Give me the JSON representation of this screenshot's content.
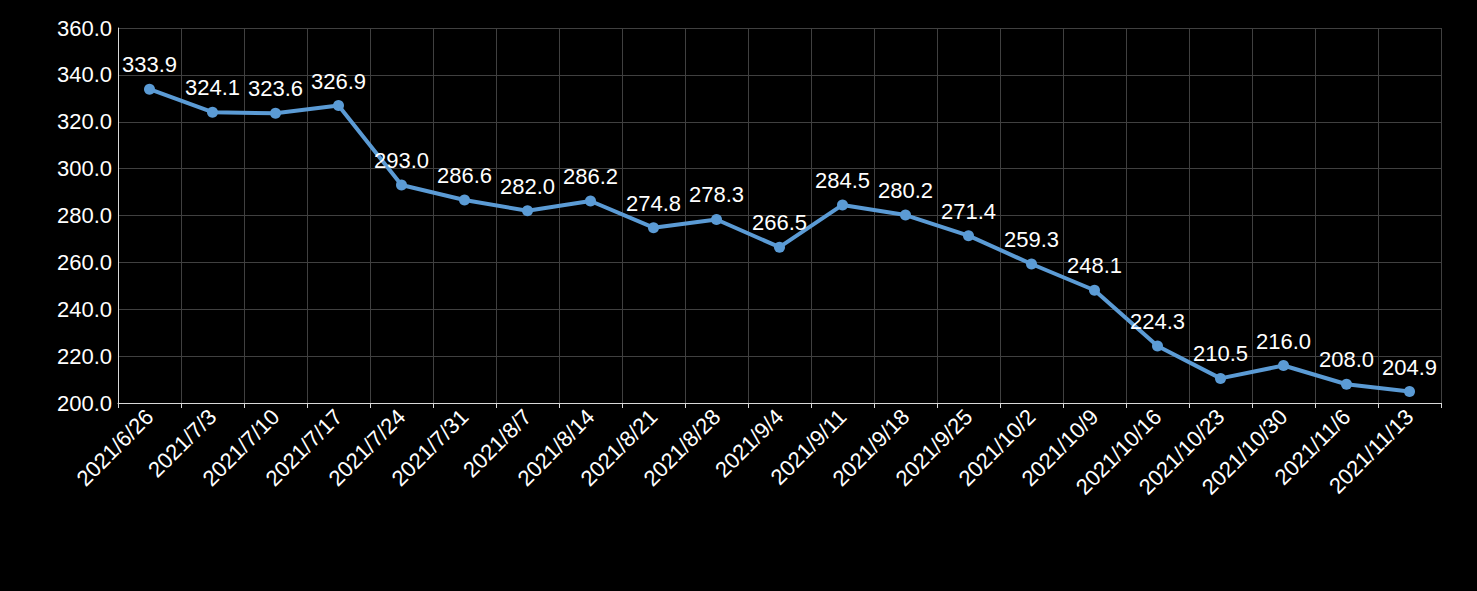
{
  "chart_data": {
    "type": "line",
    "categories": [
      "2021/6/26",
      "2021/7/3",
      "2021/7/10",
      "2021/7/17",
      "2021/7/24",
      "2021/7/31",
      "2021/8/7",
      "2021/8/14",
      "2021/8/21",
      "2021/8/28",
      "2021/9/4",
      "2021/9/11",
      "2021/9/18",
      "2021/9/25",
      "2021/10/2",
      "2021/10/9",
      "2021/10/16",
      "2021/10/23",
      "2021/10/30",
      "2021/11/6",
      "2021/11/13"
    ],
    "values": [
      333.9,
      324.1,
      323.6,
      326.9,
      293.0,
      286.6,
      282.0,
      286.2,
      274.8,
      278.3,
      266.5,
      284.5,
      280.2,
      271.4,
      259.3,
      248.1,
      224.3,
      210.5,
      216.0,
      208.0,
      204.9
    ],
    "value_labels": [
      "333.9",
      "324.1",
      "323.6",
      "326.9",
      "293.0",
      "286.6",
      "282.0",
      "286.2",
      "274.8",
      "278.3",
      "266.5",
      "284.5",
      "280.2",
      "271.4",
      "259.3",
      "248.1",
      "224.3",
      "210.5",
      "216.0",
      "208.0",
      "204.9"
    ],
    "color": "#5b9bd5",
    "marker": "circle",
    "ylim": [
      200,
      360
    ],
    "yticks": [
      {
        "value": 200,
        "label": "200.0"
      },
      {
        "value": 220,
        "label": "220.0"
      },
      {
        "value": 240,
        "label": "240.0"
      },
      {
        "value": 260,
        "label": "260.0"
      },
      {
        "value": 280,
        "label": "280.0"
      },
      {
        "value": 300,
        "label": "300.0"
      },
      {
        "value": 320,
        "label": "320.0"
      },
      {
        "value": 340,
        "label": "340.0"
      },
      {
        "value": 360,
        "label": "360.0"
      }
    ],
    "grid": true,
    "data_labels": true
  }
}
